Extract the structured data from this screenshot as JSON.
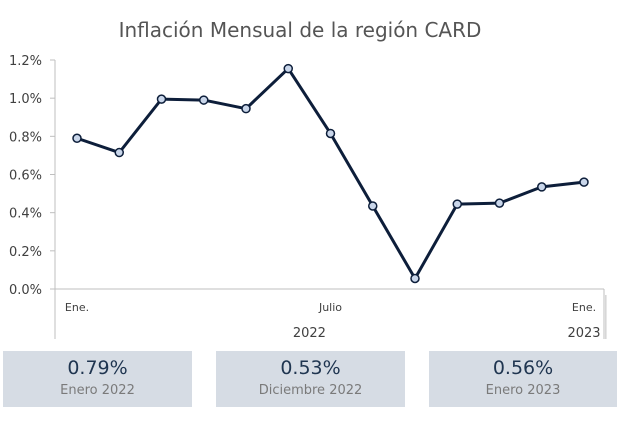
{
  "chart_data": {
    "type": "line",
    "title": "Inflación Mensual de la región CARD",
    "xlabel": "",
    "ylabel": "",
    "ylim": [
      0,
      1.2
    ],
    "y_ticks": [
      "0.0%",
      "0.2%",
      "0.4%",
      "0.6%",
      "0.8%",
      "1.0%",
      "1.2%"
    ],
    "y_tick_values": [
      0,
      0.2,
      0.4,
      0.6,
      0.8,
      1.0,
      1.2
    ],
    "x_tick_labels": [
      {
        "index": 0,
        "label": "Ene."
      },
      {
        "index": 6,
        "label": "Julio"
      },
      {
        "index": 12,
        "label": "Ene."
      }
    ],
    "x_group_labels": [
      {
        "label": "2022",
        "from": 0,
        "to": 11
      },
      {
        "label": "2023",
        "from": 12,
        "to": 12
      }
    ],
    "grid": false,
    "colors": {
      "line": "#0d1e3a",
      "marker_fill": "#c9d6ea"
    },
    "series": [
      {
        "values": [
          0.79,
          0.715,
          0.995,
          0.99,
          0.945,
          1.155,
          0.815,
          0.435,
          0.055,
          0.445,
          0.45,
          0.535,
          0.56
        ]
      }
    ]
  },
  "summary_cards": [
    {
      "value": "0.79%",
      "label": "Enero 2022"
    },
    {
      "value": "0.53%",
      "label": "Diciembre 2022"
    },
    {
      "value": "0.56%",
      "label": "Enero 2023"
    }
  ],
  "colors": {
    "card_bg": "#d6dce4",
    "value_text": "#1f3550",
    "label_text": "#7a7a7a"
  }
}
